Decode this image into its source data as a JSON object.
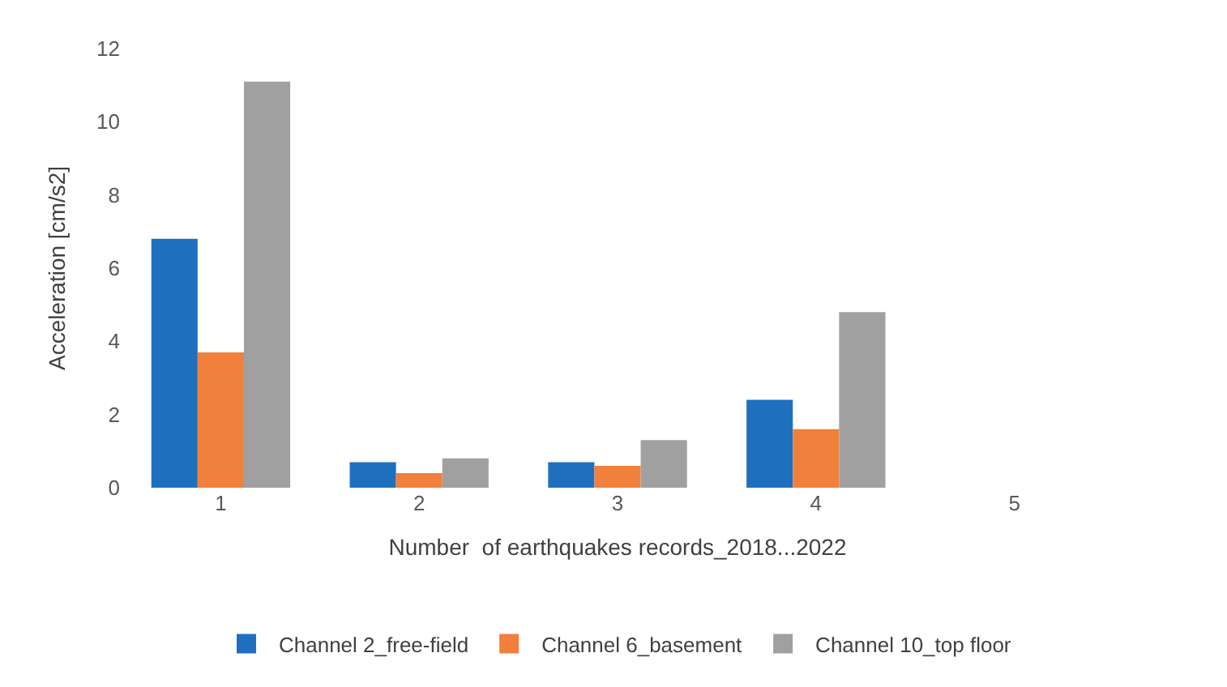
{
  "chart_data": {
    "type": "bar",
    "xlabel": "Number  of earthquakes records_2018...2022",
    "ylabel": "Acceleration [cm/s2]",
    "categories": [
      "1",
      "2",
      "3",
      "4",
      "5"
    ],
    "series": [
      {
        "name": "Channel 2_free-field",
        "color": "#1f6fbf",
        "values": [
          6.8,
          0.7,
          0.7,
          2.4,
          null
        ]
      },
      {
        "name": "Channel 6_basement",
        "color": "#f0803c",
        "values": [
          3.7,
          0.4,
          0.6,
          1.6,
          null
        ]
      },
      {
        "name": "Channel 10_top floor",
        "color": "#a0a0a0",
        "values": [
          11.1,
          0.8,
          1.3,
          4.8,
          null
        ]
      }
    ],
    "ylim": [
      0,
      12
    ],
    "yticks": [
      0,
      2,
      4,
      6,
      8,
      10,
      12
    ],
    "legend": "bottom"
  }
}
